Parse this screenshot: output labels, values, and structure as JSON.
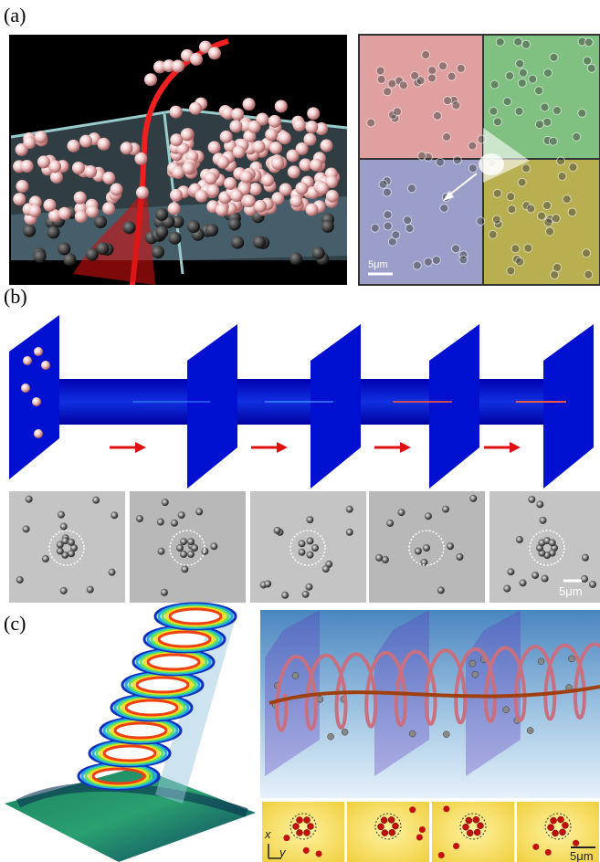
{
  "panels": {
    "a": {
      "label": "(a)",
      "scale_bar": "5μm"
    },
    "b": {
      "label": "(b)",
      "scale_bar": "5μm"
    },
    "c": {
      "label": "(c)",
      "scale_bar": "5μm",
      "axis_x": "x",
      "axis_y": "y"
    }
  }
}
